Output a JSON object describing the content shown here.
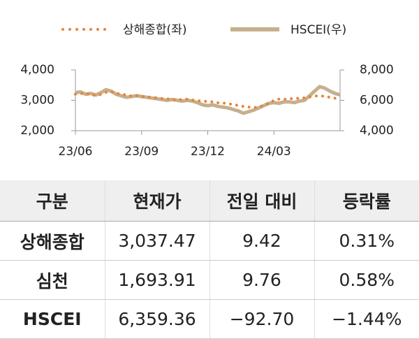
{
  "chart_data": {
    "type": "line",
    "legend": "top",
    "categories": [
      "23/06",
      null,
      null,
      null,
      null,
      null,
      null,
      null,
      null,
      null,
      null,
      null,
      null,
      "23/09",
      null,
      null,
      null,
      null,
      null,
      null,
      null,
      null,
      null,
      null,
      null,
      null,
      "23/12",
      null,
      null,
      null,
      null,
      null,
      null,
      null,
      null,
      null,
      null,
      null,
      null,
      "24/03",
      null,
      null,
      null,
      null,
      null,
      null,
      null,
      null,
      null,
      null,
      null,
      null,
      null
    ],
    "series": [
      {
        "name": "상해종합(좌)",
        "color": "#e8833a",
        "style": "dotted",
        "values": [
          3200,
          3220,
          3230,
          3180,
          3160,
          3190,
          3260,
          3290,
          3230,
          3200,
          3180,
          3140,
          3150,
          3130,
          3110,
          3100,
          3080,
          3060,
          3050,
          3020,
          3010,
          3030,
          3040,
          3010,
          2990,
          2970,
          2960,
          2950,
          2920,
          2910,
          2890,
          2860,
          2830,
          2800,
          2780,
          2760,
          2780,
          2830,
          2900,
          3000,
          3040,
          3030,
          3050,
          3060,
          3070,
          3080,
          3110,
          3140,
          3150,
          3130,
          3100,
          3070,
          3040
        ]
      },
      {
        "name": "HSCEI(우)",
        "color": "#c6b08c",
        "style": "solid",
        "axis": "y2",
        "values": [
          6500,
          6550,
          6400,
          6450,
          6350,
          6500,
          6700,
          6600,
          6400,
          6300,
          6200,
          6250,
          6300,
          6250,
          6200,
          6150,
          6100,
          6050,
          6000,
          6050,
          6000,
          5950,
          6000,
          5950,
          5850,
          5700,
          5650,
          5700,
          5600,
          5550,
          5500,
          5400,
          5300,
          5150,
          5250,
          5350,
          5500,
          5650,
          5800,
          5850,
          5800,
          5900,
          5900,
          5850,
          5950,
          6000,
          6300,
          6600,
          6900,
          6800,
          6600,
          6450,
          6360
        ]
      }
    ],
    "ylim": [
      2000,
      4000
    ],
    "yticks": [
      {
        "value": 2000,
        "label": "2,000"
      },
      {
        "value": 3000,
        "label": "3,000"
      },
      {
        "value": 4000,
        "label": "4,000"
      }
    ],
    "y2lim": [
      4000,
      8000
    ],
    "y2ticks": [
      {
        "value": 4000,
        "label": "4,000"
      },
      {
        "value": 6000,
        "label": "6,000"
      },
      {
        "value": 8000,
        "label": "8,000"
      }
    ]
  },
  "table": {
    "header": [
      "구분",
      "현재가",
      "전일 대비",
      "등락률"
    ],
    "rows": [
      [
        "상해종합",
        "3,037.47",
        "9.42",
        "0.31%"
      ],
      [
        "심천",
        "1,693.91",
        "9.76",
        "0.58%"
      ],
      [
        "HSCEI",
        "6,359.36",
        "−92.70",
        "−1.44%"
      ]
    ]
  }
}
